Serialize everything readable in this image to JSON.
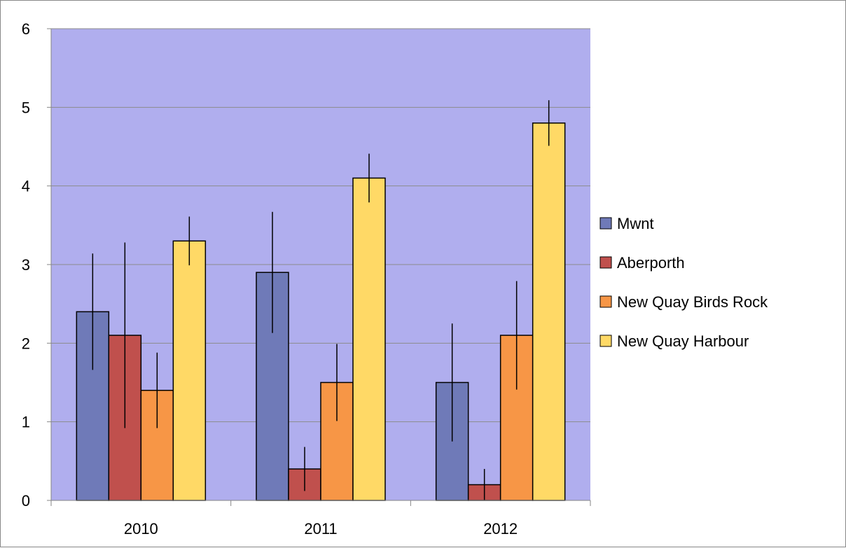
{
  "chart_data": {
    "type": "bar",
    "categories": [
      "2010",
      "2011",
      "2012"
    ],
    "series": [
      {
        "name": "Mwnt",
        "color": "#6f7ab8",
        "values": [
          2.4,
          2.9,
          1.5
        ],
        "error": [
          0.74,
          0.77,
          0.75
        ]
      },
      {
        "name": "Aberporth",
        "color": "#c0504d",
        "values": [
          2.1,
          0.4,
          0.2
        ],
        "error": [
          1.18,
          0.28,
          0.2
        ]
      },
      {
        "name": "New Quay Birds Rock",
        "color": "#f79646",
        "values": [
          1.4,
          1.5,
          2.1
        ],
        "error": [
          0.48,
          0.49,
          0.69
        ]
      },
      {
        "name": "New Quay Harbour",
        "color": "#ffd966",
        "values": [
          3.3,
          4.1,
          4.8
        ],
        "error": [
          0.31,
          0.31,
          0.29
        ]
      }
    ],
    "yticks": [
      "0",
      "1",
      "2",
      "3",
      "4",
      "5",
      "6"
    ],
    "ylim": [
      0,
      6
    ],
    "grid": true,
    "plot_background": "#b0aeee",
    "legend_position": "right",
    "title": "",
    "xlabel": "",
    "ylabel": ""
  }
}
